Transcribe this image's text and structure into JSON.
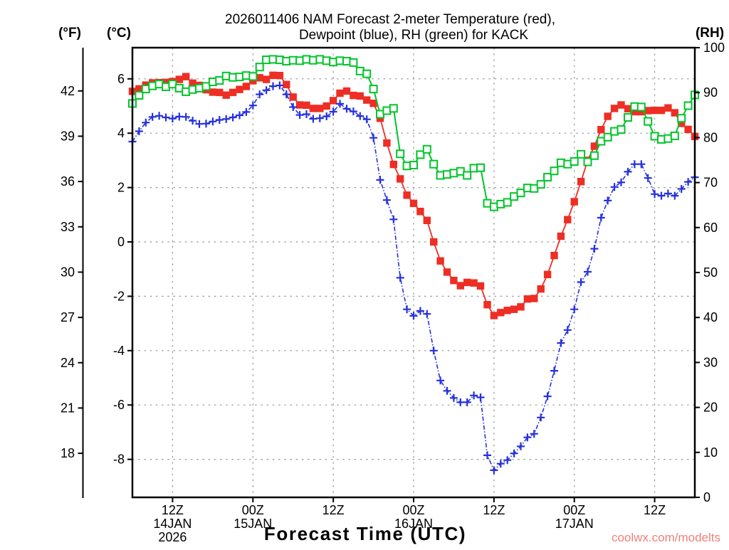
{
  "title": {
    "line1": "2026011406 NAM Forecast 2-meter Temperature (red),",
    "line2": "Dewpoint (blue), RH (green) for KACK"
  },
  "axis_labels": {
    "fahrenheit": "(°F)",
    "celsius": "(°C)",
    "relative_humidity": "(RH)",
    "x": "Forecast Time (UTC)"
  },
  "watermark": "coolwx.com/modelts",
  "colors": {
    "temperature": "#ee2e24",
    "dewpoint": "#2531de",
    "rh": "#00c52a",
    "grid": "#999999",
    "axis": "#000000",
    "watermark": "#f0807a",
    "background": "#ffffff"
  },
  "chart_data": {
    "type": "line",
    "station": "KACK",
    "model_run": "2026011406 NAM",
    "x_unit": "forecast hour, hourly from 14JAN2026 06Z to 17JAN2026 18Z",
    "x_range_hours": [
      0,
      84
    ],
    "x_ticks": [
      {
        "hour": 6,
        "label": "12Z",
        "day": "14JAN",
        "year": "2026"
      },
      {
        "hour": 18,
        "label": "00Z",
        "day": "15JAN",
        "year": ""
      },
      {
        "hour": 30,
        "label": "12Z",
        "day": "",
        "year": ""
      },
      {
        "hour": 42,
        "label": "00Z",
        "day": "16JAN",
        "year": ""
      },
      {
        "hour": 54,
        "label": "12Z",
        "day": "",
        "year": ""
      },
      {
        "hour": 66,
        "label": "00Z",
        "day": "17JAN",
        "year": ""
      },
      {
        "hour": 78,
        "label": "12Z",
        "day": "",
        "year": ""
      }
    ],
    "y_axis_celsius": {
      "label": "(°C)",
      "ticks": [
        6,
        4,
        2,
        0,
        -2,
        -4,
        -6,
        -8
      ],
      "gridlines": true
    },
    "y_axis_fahrenheit": {
      "label": "(°F)",
      "ticks": [
        42,
        39,
        36,
        33,
        30,
        27,
        24,
        21,
        18
      ]
    },
    "y_axis_rh": {
      "label": "(RH)",
      "ticks": [
        100,
        90,
        80,
        70,
        60,
        50,
        40,
        30,
        20,
        10,
        0
      ],
      "range": [
        0,
        100
      ]
    },
    "legend": "red = 2-meter Temperature, blue = Dewpoint, green = RH",
    "series": [
      {
        "name": "2-meter Temperature",
        "unit": "°C",
        "color": "#ee2e24",
        "marker": "filled-square",
        "line_style": "solid",
        "axis": "left-celsius",
        "values": [
          5.54,
          5.63,
          5.77,
          5.85,
          5.86,
          5.87,
          5.9,
          5.98,
          6.08,
          5.84,
          5.76,
          5.6,
          5.51,
          5.5,
          5.4,
          5.5,
          5.61,
          5.72,
          5.93,
          6.04,
          5.98,
          6.13,
          6.12,
          5.79,
          5.33,
          5.04,
          5.03,
          4.91,
          4.91,
          5.0,
          5.2,
          5.47,
          5.55,
          5.39,
          5.37,
          5.22,
          5.1,
          4.55,
          3.64,
          2.85,
          2.32,
          1.72,
          1.42,
          1.12,
          0.79,
          0.0,
          -0.7,
          -1.11,
          -1.42,
          -1.61,
          -1.49,
          -1.51,
          -1.62,
          -2.31,
          -2.71,
          -2.6,
          -2.52,
          -2.48,
          -2.39,
          -2.1,
          -2.08,
          -1.73,
          -1.2,
          -0.5,
          0.21,
          0.82,
          1.48,
          2.22,
          3.0,
          3.52,
          4.13,
          4.62,
          4.91,
          5.04,
          4.9,
          4.79,
          4.79,
          4.83,
          4.84,
          4.84,
          4.93,
          4.75,
          4.36,
          4.14,
          3.88
        ]
      },
      {
        "name": "Dewpoint",
        "unit": "°C",
        "color": "#2531de",
        "marker": "plus",
        "line_style": "dashed",
        "axis": "left-celsius",
        "values": [
          3.69,
          4.07,
          4.39,
          4.6,
          4.64,
          4.58,
          4.54,
          4.61,
          4.6,
          4.46,
          4.34,
          4.35,
          4.43,
          4.49,
          4.52,
          4.58,
          4.66,
          4.78,
          5.02,
          5.43,
          5.58,
          5.73,
          5.76,
          5.43,
          4.96,
          4.67,
          4.7,
          4.53,
          4.55,
          4.62,
          4.79,
          5.08,
          4.9,
          4.8,
          4.63,
          4.51,
          3.83,
          2.28,
          1.54,
          0.83,
          -1.32,
          -2.48,
          -2.72,
          -2.54,
          -2.65,
          -4.0,
          -5.1,
          -5.48,
          -5.74,
          -5.9,
          -5.9,
          -5.65,
          -5.72,
          -7.85,
          -8.4,
          -8.16,
          -8.03,
          -7.78,
          -7.52,
          -7.19,
          -7.06,
          -6.46,
          -5.68,
          -4.74,
          -3.72,
          -3.24,
          -2.48,
          -1.48,
          -1.1,
          -0.25,
          0.89,
          1.52,
          2.02,
          2.19,
          2.58,
          2.86,
          2.86,
          2.35,
          1.76,
          1.7,
          1.78,
          1.7,
          1.95,
          2.21,
          2.38
        ]
      },
      {
        "name": "RH",
        "unit": "%",
        "color": "#00c52a",
        "marker": "open-square",
        "line_style": "solid",
        "axis": "right-rh",
        "values": [
          87.6,
          89.4,
          90.8,
          91.5,
          91.9,
          91.3,
          91.9,
          91.0,
          90.2,
          90.7,
          91.0,
          91.4,
          92.4,
          92.7,
          93.7,
          93.4,
          93.5,
          93.8,
          93.6,
          95.7,
          97.3,
          97.4,
          97.3,
          97.0,
          97.2,
          97.1,
          97.4,
          97.2,
          97.4,
          97.1,
          96.8,
          97.1,
          97.0,
          96.7,
          94.8,
          94.2,
          90.8,
          85.2,
          86.0,
          86.5,
          76.4,
          73.7,
          73.9,
          76.2,
          77.4,
          74.1,
          71.6,
          71.8,
          72.1,
          72.5,
          71.6,
          73.2,
          73.3,
          65.4,
          64.6,
          65.2,
          65.6,
          66.9,
          67.7,
          68.8,
          68.7,
          69.6,
          71.2,
          72.6,
          74.4,
          74.1,
          74.7,
          76.3,
          74.6,
          76.0,
          79.2,
          80.1,
          81.4,
          81.8,
          84.5,
          86.9,
          86.8,
          83.6,
          80.3,
          79.6,
          79.8,
          80.4,
          84.3,
          87.1,
          89.5
        ]
      }
    ]
  }
}
